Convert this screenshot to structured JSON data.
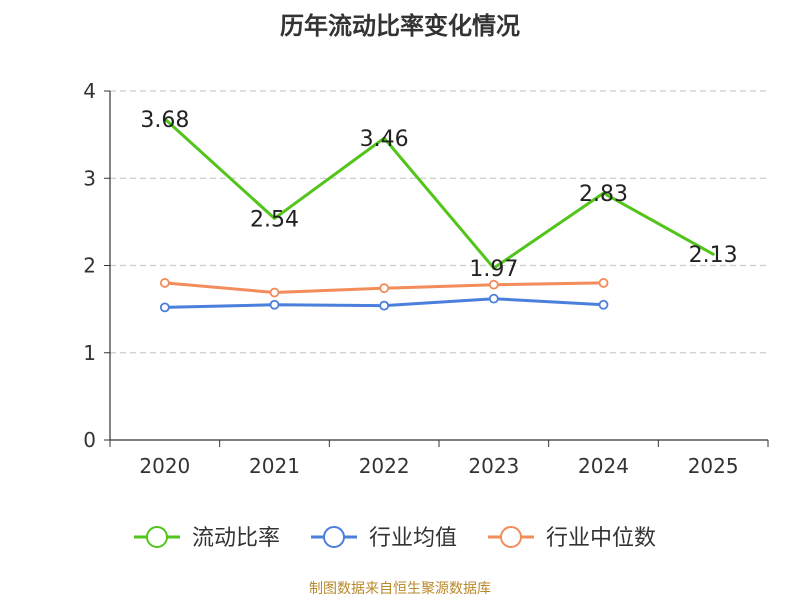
{
  "chart_data": {
    "type": "line",
    "title": "历年流动比率变化情况",
    "categories": [
      "2020",
      "2021",
      "2022",
      "2023",
      "2024",
      "2025"
    ],
    "ylim": [
      0,
      4
    ],
    "yticks": [
      0,
      1,
      2,
      3,
      4
    ],
    "grid": true,
    "legend_position": "bottom",
    "series": [
      {
        "name": "流动比率",
        "color": "#52c41a",
        "values": [
          3.68,
          2.54,
          3.46,
          1.97,
          2.83,
          2.13
        ],
        "labels": [
          "3.68",
          "2.54",
          "3.46",
          "1.97",
          "2.83",
          "2.13"
        ],
        "show_labels": true,
        "markers": false
      },
      {
        "name": "行业均值",
        "color": "#4a7fdc",
        "values": [
          1.52,
          1.55,
          1.54,
          1.62,
          1.55,
          null
        ],
        "show_labels": false,
        "markers": true
      },
      {
        "name": "行业中位数",
        "color": "#f28c5a",
        "values": [
          1.8,
          1.69,
          1.74,
          1.78,
          1.8,
          null
        ],
        "show_labels": false,
        "markers": true
      }
    ]
  },
  "source": "制图数据来自恒生聚源数据库"
}
